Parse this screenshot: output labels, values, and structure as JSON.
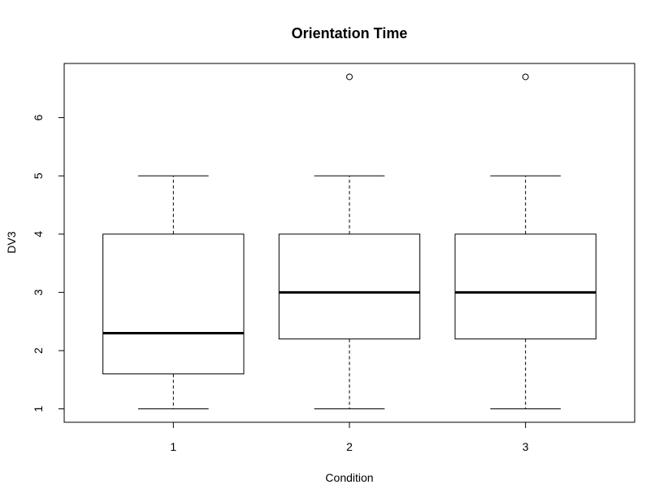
{
  "chart_data": {
    "type": "boxplot",
    "title": "Orientation Time",
    "xlabel": "Condition",
    "ylabel": "DV3",
    "categories": [
      "1",
      "2",
      "3"
    ],
    "yticks": [
      1,
      2,
      3,
      4,
      5,
      6
    ],
    "ylim": [
      0.77,
      6.93
    ],
    "grid": false,
    "legend": "none",
    "boxes": [
      {
        "category": "1",
        "whisker_low": 1,
        "q1": 1.6,
        "median": 2.3,
        "q3": 4,
        "whisker_high": 5,
        "outliers": []
      },
      {
        "category": "2",
        "whisker_low": 1,
        "q1": 2.2,
        "median": 3,
        "q3": 4,
        "whisker_high": 5,
        "outliers": [
          6.7
        ]
      },
      {
        "category": "3",
        "whisker_low": 1,
        "q1": 2.2,
        "median": 3,
        "q3": 4,
        "whisker_high": 5,
        "outliers": [
          6.7
        ]
      }
    ]
  }
}
